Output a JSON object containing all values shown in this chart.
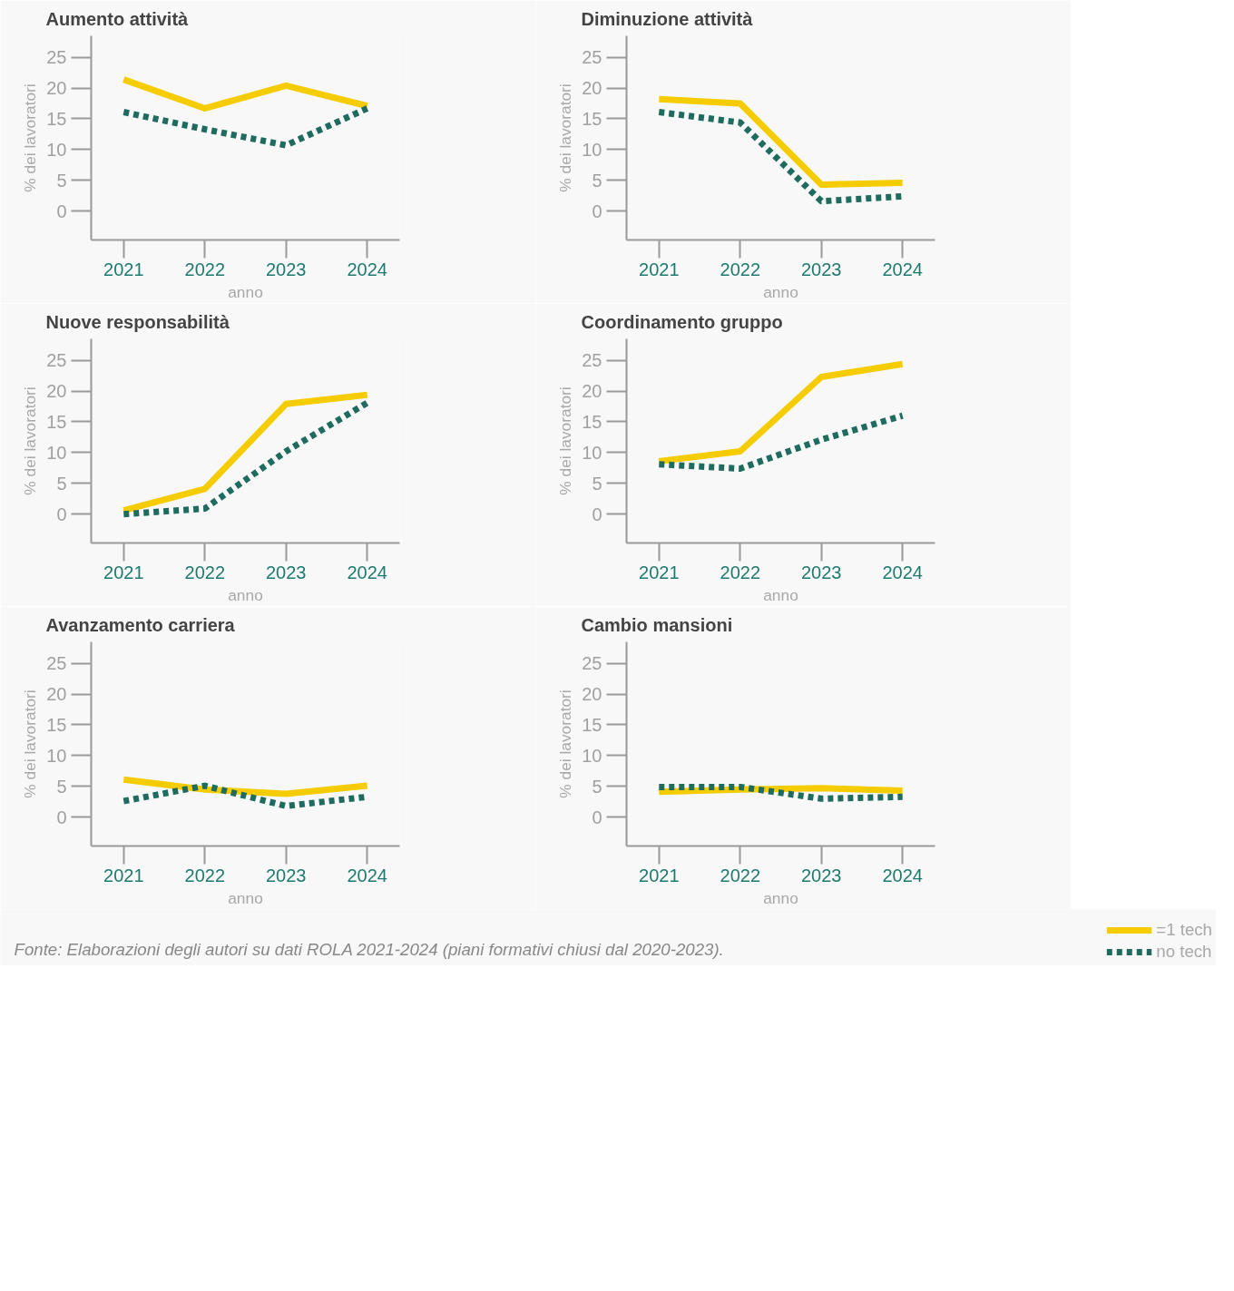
{
  "chart_data": [
    {
      "type": "line",
      "title": "Aumento attività",
      "categories": [
        "2021",
        "2022",
        "2023",
        "2024"
      ],
      "xlabel": "anno",
      "ylabel": "% dei lavoratori",
      "ylim": [
        -4.7,
        28.5
      ],
      "yticks": [
        0,
        5,
        10,
        15,
        20,
        25
      ],
      "grid": false,
      "legend": false,
      "series": [
        {
          "color": "#f5cc00",
          "line_style": "solid",
          "values": [
            21.4,
            16.7,
            20.4,
            17.1
          ]
        },
        {
          "color": "#1f6b5e",
          "line_style": "dotted",
          "values": [
            16.1,
            13.3,
            10.7,
            16.7
          ]
        }
      ]
    },
    {
      "type": "line",
      "title": "Diminuzione attività",
      "categories": [
        "2021",
        "2022",
        "2023",
        "2024"
      ],
      "xlabel": "anno",
      "ylabel": "% dei lavoratori",
      "ylim": [
        -4.7,
        28.5
      ],
      "yticks": [
        0,
        5,
        10,
        15,
        20,
        25
      ],
      "grid": false,
      "legend": false,
      "series": [
        {
          "color": "#f5cc00",
          "line_style": "solid",
          "values": [
            18.2,
            17.5,
            4.3,
            4.6
          ]
        },
        {
          "color": "#1f6b5e",
          "line_style": "dotted",
          "values": [
            16.1,
            14.4,
            1.6,
            2.4
          ]
        }
      ]
    },
    {
      "type": "line",
      "title": "Nuove responsabilità",
      "categories": [
        "2021",
        "2022",
        "2023",
        "2024"
      ],
      "xlabel": "anno",
      "ylabel": "% dei lavoratori",
      "ylim": [
        -4.7,
        28.5
      ],
      "yticks": [
        0,
        5,
        10,
        15,
        20,
        25
      ],
      "grid": false,
      "legend": false,
      "series": [
        {
          "color": "#f5cc00",
          "line_style": "solid",
          "values": [
            0.6,
            4.1,
            17.9,
            19.4
          ]
        },
        {
          "color": "#1f6b5e",
          "line_style": "dotted",
          "values": [
            0.0,
            0.9,
            10.2,
            18.1
          ]
        }
      ]
    },
    {
      "type": "line",
      "title": "Coordinamento gruppo",
      "categories": [
        "2021",
        "2022",
        "2023",
        "2024"
      ],
      "xlabel": "anno",
      "ylabel": "% dei lavoratori",
      "ylim": [
        -4.7,
        28.5
      ],
      "yticks": [
        0,
        5,
        10,
        15,
        20,
        25
      ],
      "grid": false,
      "legend": false,
      "series": [
        {
          "color": "#f5cc00",
          "line_style": "solid",
          "values": [
            8.6,
            10.2,
            22.3,
            24.4
          ]
        },
        {
          "color": "#1f6b5e",
          "line_style": "dotted",
          "values": [
            8.1,
            7.4,
            12.1,
            16.0
          ]
        }
      ]
    },
    {
      "type": "line",
      "title": "Avanzamento carriera",
      "categories": [
        "2021",
        "2022",
        "2023",
        "2024"
      ],
      "xlabel": "anno",
      "ylabel": "% dei lavoratori",
      "ylim": [
        -4.7,
        28.5
      ],
      "yticks": [
        0,
        5,
        10,
        15,
        20,
        25
      ],
      "grid": false,
      "legend": false,
      "series": [
        {
          "color": "#f5cc00",
          "line_style": "solid",
          "values": [
            6.1,
            4.5,
            3.8,
            5.1
          ]
        },
        {
          "color": "#1f6b5e",
          "line_style": "dotted",
          "values": [
            2.6,
            5.1,
            1.8,
            3.3
          ]
        }
      ]
    },
    {
      "type": "line",
      "title": "Cambio mansioni",
      "categories": [
        "2021",
        "2022",
        "2023",
        "2024"
      ],
      "xlabel": "anno",
      "ylabel": "% dei lavoratori",
      "ylim": [
        -4.7,
        28.5
      ],
      "yticks": [
        0,
        5,
        10,
        15,
        20,
        25
      ],
      "grid": false,
      "legend": "bottom right",
      "annotations": [
        "Fonte: Elaborazioni degli autori su dati ROLA 2021-2024 (piani formativi chiusi dal 2020-2023)."
      ],
      "series": [
        {
          "name": "=1 tech",
          "color": "#f5cc00",
          "line_style": "solid",
          "values": [
            4.1,
            4.5,
            4.7,
            4.3
          ]
        },
        {
          "name": "no tech",
          "color": "#1f6b5e",
          "line_style": "dotted",
          "values": [
            4.9,
            4.9,
            3.0,
            3.3
          ]
        }
      ]
    }
  ]
}
